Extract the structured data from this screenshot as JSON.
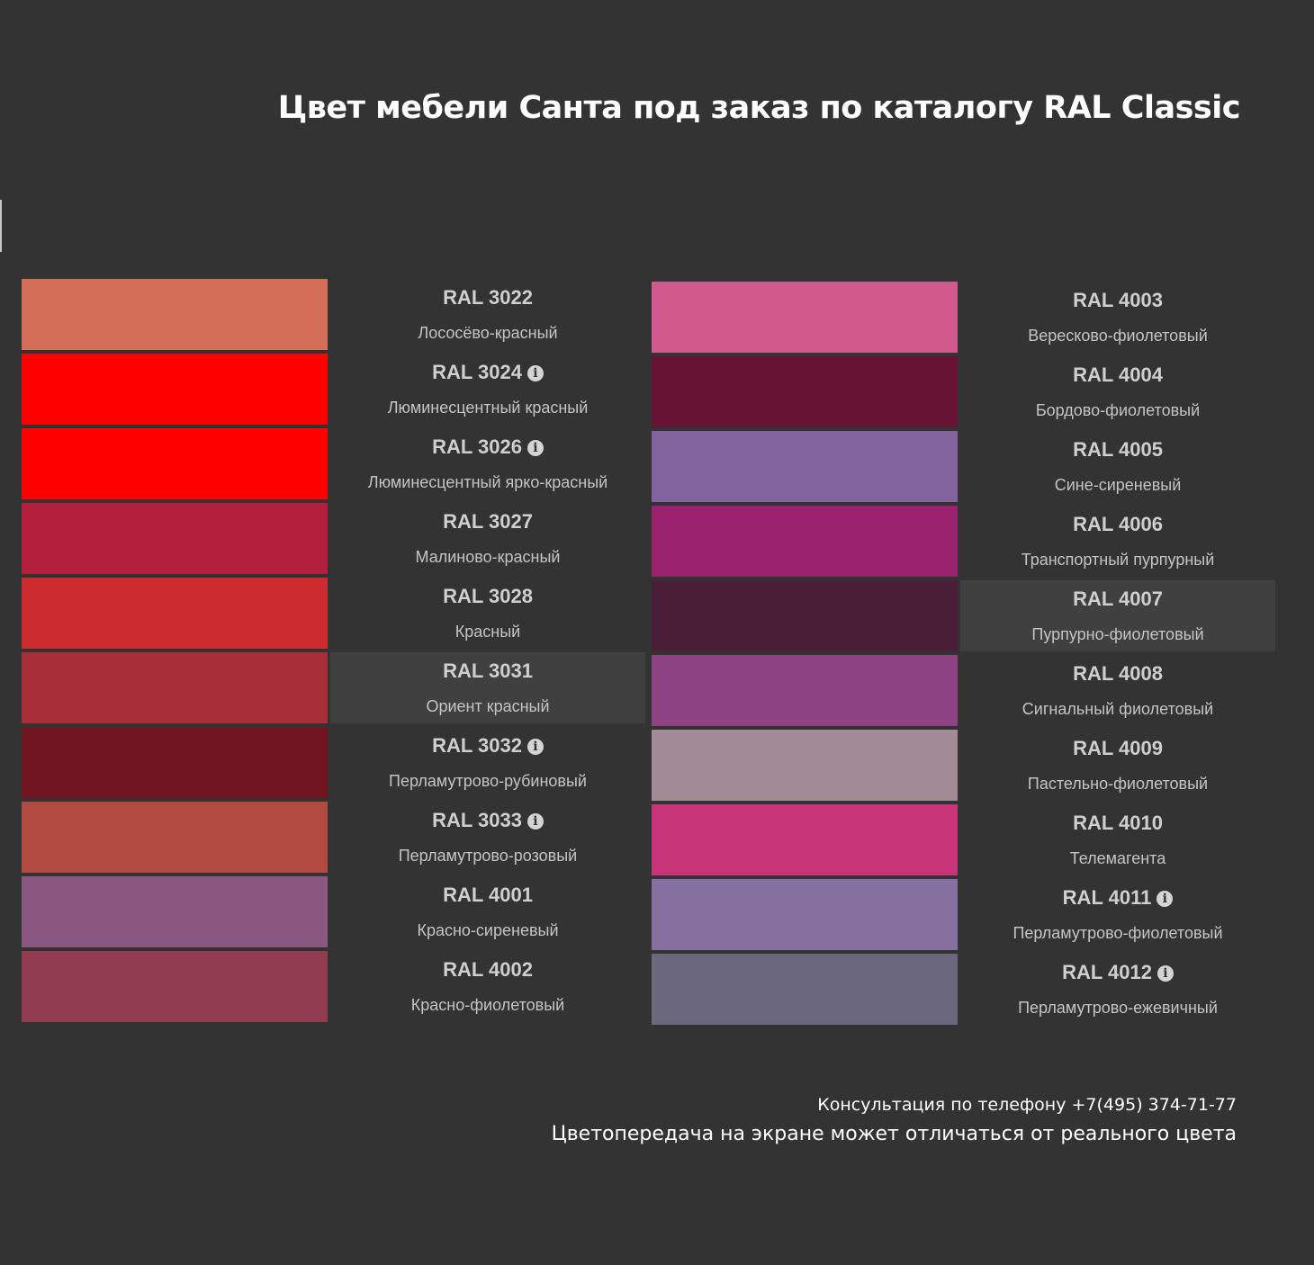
{
  "title": "Цвет мебели Санта под заказ по каталогу RAL Classic",
  "left_colors": [
    {
      "code": "RAL 3022",
      "name": "Лососёво-красный",
      "hex": "#D36E58",
      "info": false,
      "highlighted": false
    },
    {
      "code": "RAL 3024",
      "name": "Люминесцентный красный",
      "hex": "#FF0000",
      "info": true,
      "highlighted": false
    },
    {
      "code": "RAL 3026",
      "name": "Люминесцентный ярко-красный",
      "hex": "#FF0000",
      "info": true,
      "highlighted": false
    },
    {
      "code": "RAL 3027",
      "name": "Малиново-красный",
      "hex": "#B31F3C",
      "info": false,
      "highlighted": false
    },
    {
      "code": "RAL 3028",
      "name": "Красный",
      "hex": "#CC2C2F",
      "info": false,
      "highlighted": false
    },
    {
      "code": "RAL 3031",
      "name": "Ориент красный",
      "hex": "#A82F39",
      "info": false,
      "highlighted": true
    },
    {
      "code": "RAL 3032",
      "name": "Перламутрово-рубиновый",
      "hex": "#6F1420",
      "info": true,
      "highlighted": false
    },
    {
      "code": "RAL 3033",
      "name": "Перламутрово-розовый",
      "hex": "#B14A41",
      "info": true,
      "highlighted": false
    },
    {
      "code": "RAL 4001",
      "name": "Красно-сиреневый",
      "hex": "#8A5781",
      "info": false,
      "highlighted": false
    },
    {
      "code": "RAL 4002",
      "name": "Красно-фиолетовый",
      "hex": "#913C50",
      "info": false,
      "highlighted": false
    }
  ],
  "right_colors": [
    {
      "code": "RAL 4003",
      "name": "Вересково-фиолетовый",
      "hex": "#D05A8B",
      "info": false,
      "highlighted": false
    },
    {
      "code": "RAL 4004",
      "name": "Бордово-фиолетовый",
      "hex": "#671434",
      "info": false,
      "highlighted": false
    },
    {
      "code": "RAL 4005",
      "name": "Сине-сиреневый",
      "hex": "#83639D",
      "info": false,
      "highlighted": false
    },
    {
      "code": "RAL 4006",
      "name": "Транспортный пурпурный",
      "hex": "#9A226E",
      "info": false,
      "highlighted": false
    },
    {
      "code": "RAL 4007",
      "name": "Пурпурно-фиолетовый",
      "hex": "#4A1E37",
      "info": false,
      "highlighted": true
    },
    {
      "code": "RAL 4008",
      "name": "Сигнальный фиолетовый",
      "hex": "#8E4483",
      "info": false,
      "highlighted": false
    },
    {
      "code": "RAL 4009",
      "name": "Пастельно-фиолетовый",
      "hex": "#A38B95",
      "info": false,
      "highlighted": false
    },
    {
      "code": "RAL 4010",
      "name": "Телемагента",
      "hex": "#C73478",
      "info": false,
      "highlighted": false
    },
    {
      "code": "RAL 4011",
      "name": "Перламутрово-фиолетовый",
      "hex": "#8670A0",
      "info": true,
      "highlighted": false
    },
    {
      "code": "RAL 4012",
      "name": "Перламутрово-ежевичный",
      "hex": "#6B687E",
      "info": true,
      "highlighted": false
    }
  ],
  "footer": {
    "consult": "Консультация по телефону +7(495) 374-71-77",
    "note": "Цветопередача на экране может отличаться от реального цвета"
  }
}
